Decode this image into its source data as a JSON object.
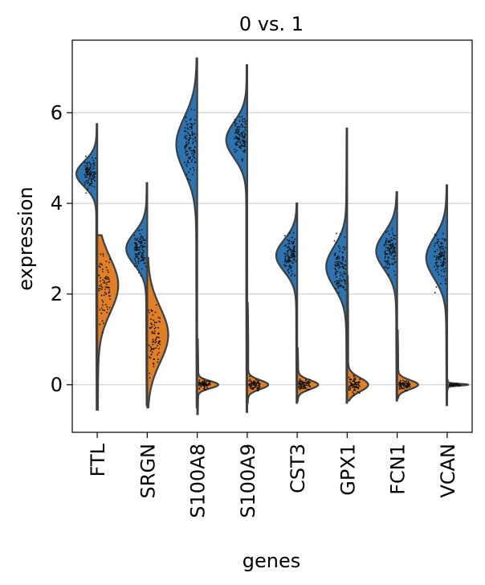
{
  "chart_data": {
    "type": "violin",
    "title": "0 vs. 1",
    "xlabel": "genes",
    "ylabel": "expression",
    "ylim": [
      -1.05,
      7.6
    ],
    "yticks": [
      0,
      2,
      4,
      6
    ],
    "grid": "horizontal",
    "split": true,
    "colors": {
      "group0": "#2c73b0",
      "group1": "#e07f26",
      "outline": "#3f3f3f"
    },
    "categories": [
      "FTL",
      "SRGN",
      "S100A8",
      "S100A9",
      "CST3",
      "GPX1",
      "FCN1",
      "VCAN"
    ],
    "series": [
      {
        "values": [
          {
            "min": -0.55,
            "max": 5.75,
            "mode": 4.65,
            "spread": 0.28
          },
          {
            "min": -0.45,
            "max": 4.45,
            "mode": 3.0,
            "spread": 0.35
          },
          {
            "min": -0.5,
            "max": 7.2,
            "mode": 5.3,
            "spread": 0.6
          },
          {
            "min": -0.6,
            "max": 7.05,
            "mode": 5.4,
            "spread": 0.4
          },
          {
            "min": -0.4,
            "max": 4.0,
            "mode": 2.85,
            "spread": 0.35
          },
          {
            "min": -0.4,
            "max": 5.65,
            "mode": 2.6,
            "spread": 0.45
          },
          {
            "min": -0.35,
            "max": 4.25,
            "mode": 2.95,
            "spread": 0.4
          },
          {
            "min": -0.45,
            "max": 4.4,
            "mode": 2.8,
            "spread": 0.45
          }
        ]
      },
      {
        "values": [
          {
            "min": -0.55,
            "max": 3.3,
            "mode": 2.2,
            "spread": 0.6
          },
          {
            "min": -0.5,
            "max": 2.8,
            "mode": 1.1,
            "spread": 0.6
          },
          {
            "min": -0.65,
            "max": 1.0,
            "mode": 0.0,
            "spread": 0.08
          },
          {
            "min": -0.4,
            "max": 1.8,
            "mode": 0.0,
            "spread": 0.1
          },
          {
            "min": -0.35,
            "max": 0.8,
            "mode": 0.0,
            "spread": 0.1
          },
          {
            "min": -0.35,
            "max": 2.4,
            "mode": 0.0,
            "spread": 0.15
          },
          {
            "min": -0.3,
            "max": 1.2,
            "mode": 0.0,
            "spread": 0.1
          },
          {
            "min": -0.1,
            "max": 0.1,
            "mode": 0.0,
            "spread": 0.02
          }
        ]
      }
    ]
  }
}
